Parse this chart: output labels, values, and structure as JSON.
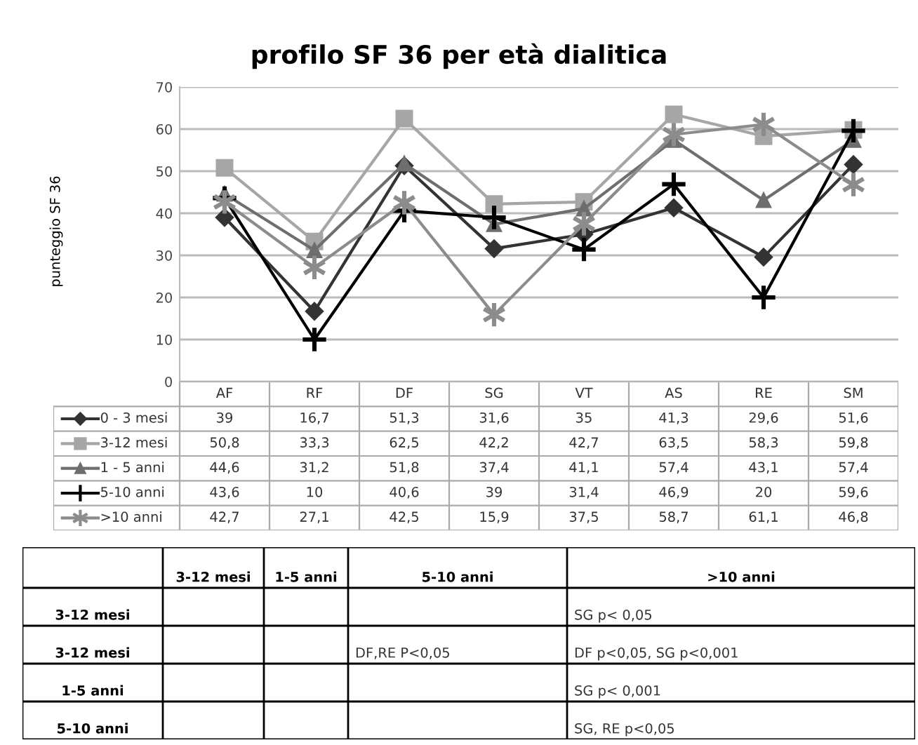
{
  "chart_data": [
    {
      "type": "line",
      "title": "profilo SF 36 per età dialitica",
      "ylabel": "punteggio SF 36",
      "categories": [
        "AF",
        "RF",
        "DF",
        "SG",
        "VT",
        "AS",
        "RE",
        "SM"
      ],
      "series": [
        {
          "name": "0 - 3 mesi",
          "color": "#333333",
          "marker": "diamond",
          "values": [
            39,
            16.7,
            51.3,
            31.6,
            35,
            41.3,
            29.6,
            51.6
          ],
          "value_labels": [
            "39",
            "16,7",
            "51,3",
            "31,6",
            "35",
            "41,3",
            "29,6",
            "51,6"
          ]
        },
        {
          "name": "3-12 mesi",
          "color": "#a6a6a6",
          "marker": "square",
          "values": [
            50.8,
            33.3,
            62.5,
            42.2,
            42.7,
            63.5,
            58.3,
            59.8
          ],
          "value_labels": [
            "50,8",
            "33,3",
            "62,5",
            "42,2",
            "42,7",
            "63,5",
            "58,3",
            "59,8"
          ]
        },
        {
          "name": "1 - 5 anni",
          "color": "#6e6e6e",
          "marker": "triangle",
          "values": [
            44.6,
            31.2,
            51.8,
            37.4,
            41.1,
            57.4,
            43.1,
            57.4
          ],
          "value_labels": [
            "44,6",
            "31,2",
            "51,8",
            "37,4",
            "41,1",
            "57,4",
            "43,1",
            "57,4"
          ]
        },
        {
          "name": "5-10 anni",
          "color": "#000000",
          "marker": "cross",
          "values": [
            43.6,
            10,
            40.6,
            39,
            31.4,
            46.9,
            20,
            59.6
          ],
          "value_labels": [
            "43,6",
            "10",
            "40,6",
            "39",
            "31,4",
            "46,9",
            "20",
            "59,6"
          ]
        },
        {
          "name": ">10 anni",
          "color": "#8c8c8c",
          "marker": "cross",
          "values": [
            42.7,
            27.1,
            42.5,
            15.9,
            37.5,
            58.7,
            61.1,
            46.8
          ],
          "value_labels": [
            "42,7",
            "27,1",
            "42,5",
            "15,9",
            "37,5",
            "58,7",
            "61,1",
            "46,8"
          ]
        }
      ],
      "ylim": [
        0,
        70
      ],
      "yticks": [
        0,
        10,
        20,
        30,
        40,
        50,
        60,
        70
      ],
      "grid": "y",
      "legend": "bottom",
      "line_style": "solid"
    },
    {
      "type": "other",
      "annotations": [
        "3-12 mesi",
        "1-5 anni",
        "5-10 anni",
        ">10 anni",
        "3-12 mesi",
        "SG p< 0,05",
        "3-12 mesi",
        "DF,RE P<0,05",
        "DF p<0,05, SG p<0,001",
        "1-5 anni",
        "SG p< 0,001",
        "5-10 anni",
        "SG, RE p<0,05"
      ]
    }
  ]
}
